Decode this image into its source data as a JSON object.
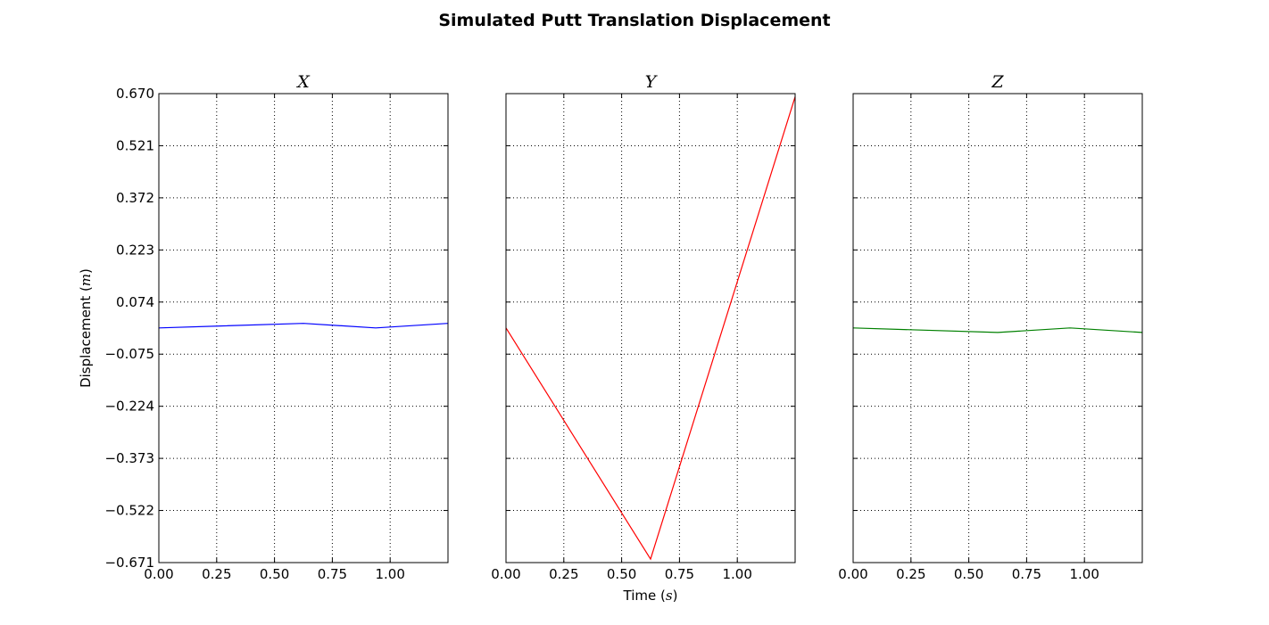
{
  "chart_data": {
    "type": "line",
    "title": "Simulated Putt Translation Displacement",
    "ylabel": "Displacement",
    "ylabel_unit": "m",
    "xlabel": "Time",
    "xlabel_unit": "s",
    "xlim": [
      0,
      1.25
    ],
    "ylim": [
      -0.671,
      0.67
    ],
    "x_ticks": [
      0.0,
      0.25,
      0.5,
      0.75,
      1.0
    ],
    "x_tick_labels": [
      "0.00",
      "0.25",
      "0.50",
      "0.75",
      "1.00"
    ],
    "y_ticks": [
      0.67,
      0.521,
      0.372,
      0.223,
      0.074,
      -0.075,
      -0.224,
      -0.373,
      -0.522,
      -0.671
    ],
    "y_tick_labels": [
      "0.670",
      "0.521",
      "0.372",
      "0.223",
      "0.074",
      "−0.075",
      "−0.224",
      "−0.373",
      "−0.522",
      "−0.671"
    ],
    "grid": true,
    "shared_y": true,
    "panels": [
      {
        "title": "X",
        "color": "#0000ff",
        "x": [
          0.0,
          0.625,
          0.9375,
          1.25
        ],
        "y": [
          0.0,
          0.013,
          0.0,
          0.013
        ]
      },
      {
        "title": "Y",
        "color": "#ff0000",
        "x": [
          0.0,
          0.625,
          1.25
        ],
        "y": [
          0.0,
          -0.661,
          0.661
        ]
      },
      {
        "title": "Z",
        "color": "#008000",
        "x": [
          0.0,
          0.625,
          0.9375,
          1.25
        ],
        "y": [
          0.0,
          -0.013,
          0.0,
          -0.013
        ]
      }
    ]
  }
}
